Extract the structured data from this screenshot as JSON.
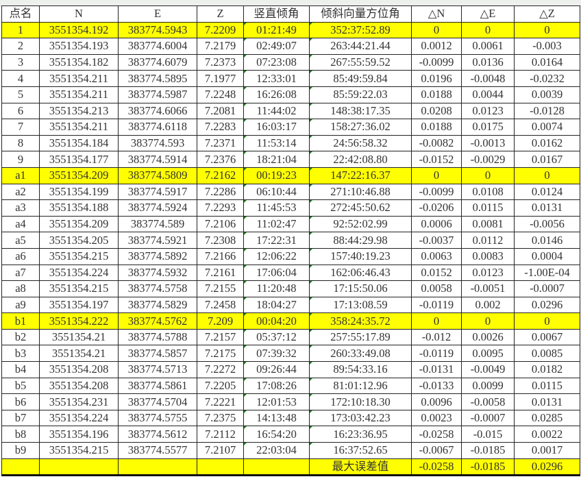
{
  "headers": [
    "点名",
    "N",
    "E",
    "Z",
    "竖直倾角",
    "倾斜向量方位角",
    "△N",
    "△E",
    "△Z"
  ],
  "rows": [
    {
      "name": "1",
      "N": "3551354.192",
      "E": "383774.5943",
      "Z": "7.2209",
      "v": "01:21:49",
      "az": "352:37:52.89",
      "dN": "0",
      "dE": "0",
      "dZ": "0",
      "highlight": true
    },
    {
      "name": "2",
      "N": "3551354.193",
      "E": "383774.6004",
      "Z": "7.2179",
      "v": "02:49:07",
      "az": "263:44:21.44",
      "dN": "0.0012",
      "dE": "0.0061",
      "dZ": "-0.003"
    },
    {
      "name": "3",
      "N": "3551354.182",
      "E": "383774.6079",
      "Z": "7.2373",
      "v": "07:23:08",
      "az": "267:55:59.52",
      "dN": "-0.0099",
      "dE": "0.0136",
      "dZ": "0.0164"
    },
    {
      "name": "4",
      "N": "3551354.211",
      "E": "383774.5895",
      "Z": "7.1977",
      "v": "12:33:01",
      "az": "85:49:59.84",
      "dN": "0.0196",
      "dE": "-0.0048",
      "dZ": "-0.0232"
    },
    {
      "name": "5",
      "N": "3551354.211",
      "E": "383774.5987",
      "Z": "7.2248",
      "v": "16:26:08",
      "az": "85:59:22.03",
      "dN": "0.0188",
      "dE": "0.0044",
      "dZ": "0.0039"
    },
    {
      "name": "6",
      "N": "3551354.213",
      "E": "383774.6066",
      "Z": "7.2081",
      "v": "11:44:02",
      "az": "148:38:17.35",
      "dN": "0.0208",
      "dE": "0.0123",
      "dZ": "-0.0128"
    },
    {
      "name": "7",
      "N": "3551354.211",
      "E": "383774.6118",
      "Z": "7.2283",
      "v": "16:03:17",
      "az": "158:27:36.02",
      "dN": "0.0188",
      "dE": "0.0175",
      "dZ": "0.0074"
    },
    {
      "name": "8",
      "N": "3551354.184",
      "E": "383774.593",
      "Z": "7.2371",
      "v": "11:53:14",
      "az": "24:56:58.32",
      "dN": "-0.0082",
      "dE": "-0.0013",
      "dZ": "0.0162"
    },
    {
      "name": "9",
      "N": "3551354.177",
      "E": "383774.5914",
      "Z": "7.2376",
      "v": "18:21:04",
      "az": "22:42:08.80",
      "dN": "-0.0152",
      "dE": "-0.0029",
      "dZ": "0.0167"
    },
    {
      "name": "a1",
      "N": "3551354.209",
      "E": "383774.5809",
      "Z": "7.2162",
      "v": "00:19:23",
      "az": "147:22:16.37",
      "dN": "0",
      "dE": "0",
      "dZ": "0",
      "highlight": true
    },
    {
      "name": "a2",
      "N": "3551354.199",
      "E": "383774.5917",
      "Z": "7.2286",
      "v": "06:10:44",
      "az": "271:10:46.88",
      "dN": "-0.0099",
      "dE": "0.0108",
      "dZ": "0.0124"
    },
    {
      "name": "a3",
      "N": "3551354.188",
      "E": "383774.5924",
      "Z": "7.2293",
      "v": "11:45:53",
      "az": "272:45:50.62",
      "dN": "-0.0206",
      "dE": "0.0115",
      "dZ": "0.0131"
    },
    {
      "name": "a4",
      "N": "3551354.209",
      "E": "383774.589",
      "Z": "7.2106",
      "v": "11:02:47",
      "az": "92:52:02.99",
      "dN": "0.0006",
      "dE": "0.0081",
      "dZ": "-0.0056"
    },
    {
      "name": "a5",
      "N": "3551354.205",
      "E": "383774.5921",
      "Z": "7.2308",
      "v": "17:22:31",
      "az": "88:44:29.98",
      "dN": "-0.0037",
      "dE": "0.0112",
      "dZ": "0.0146"
    },
    {
      "name": "a6",
      "N": "3551354.215",
      "E": "383774.5892",
      "Z": "7.2166",
      "v": "12:06:22",
      "az": "157:40:19.23",
      "dN": "0.0063",
      "dE": "0.0083",
      "dZ": "0.0004"
    },
    {
      "name": "a7",
      "N": "3551354.224",
      "E": "383774.5932",
      "Z": "7.2161",
      "v": "17:06:04",
      "az": "162:06:46.43",
      "dN": "0.0152",
      "dE": "0.0123",
      "dZ": "-1.00E-04"
    },
    {
      "name": "a8",
      "N": "3551354.215",
      "E": "383774.5758",
      "Z": "7.2155",
      "v": "11:20:48",
      "az": "17:15:50.06",
      "dN": "0.0058",
      "dE": "-0.0051",
      "dZ": "-0.0007"
    },
    {
      "name": "a9",
      "N": "3551354.197",
      "E": "383774.5829",
      "Z": "7.2458",
      "v": "18:04:27",
      "az": "17:13:08.59",
      "dN": "-0.0119",
      "dE": "0.002",
      "dZ": "0.0296"
    },
    {
      "name": "b1",
      "N": "3551354.222",
      "E": "383774.5762",
      "Z": "7.209",
      "v": "00:04:20",
      "az": "358:24:35.72",
      "dN": "0",
      "dE": "0",
      "dZ": "0",
      "highlight": true
    },
    {
      "name": "b2",
      "N": "3551354.21",
      "E": "383774.5788",
      "Z": "7.2157",
      "v": "05:37:12",
      "az": "257:55:17.89",
      "dN": "-0.012",
      "dE": "0.0026",
      "dZ": "0.0067"
    },
    {
      "name": "b3",
      "N": "3551354.21",
      "E": "383774.5857",
      "Z": "7.2175",
      "v": "07:39:32",
      "az": "260:33:49.08",
      "dN": "-0.0119",
      "dE": "0.0095",
      "dZ": "0.0085"
    },
    {
      "name": "b4",
      "N": "3551354.208",
      "E": "383774.5713",
      "Z": "7.2272",
      "v": "09:26:44",
      "az": "89:54:33.16",
      "dN": "-0.0131",
      "dE": "-0.0049",
      "dZ": "0.0182"
    },
    {
      "name": "b5",
      "N": "3551354.208",
      "E": "383774.5861",
      "Z": "7.2205",
      "v": "17:08:26",
      "az": "81:01:12.96",
      "dN": "-0.0133",
      "dE": "0.0099",
      "dZ": "0.0115"
    },
    {
      "name": "b6",
      "N": "3551354.231",
      "E": "383774.5704",
      "Z": "7.2221",
      "v": "12:01:53",
      "az": "172:10:18.30",
      "dN": "0.0096",
      "dE": "-0.0058",
      "dZ": "0.0131"
    },
    {
      "name": "b7",
      "N": "3551354.224",
      "E": "383774.5755",
      "Z": "7.2375",
      "v": "14:13:48",
      "az": "173:03:42.23",
      "dN": "0.0023",
      "dE": "-0.0007",
      "dZ": "0.0285"
    },
    {
      "name": "b8",
      "N": "3551354.196",
      "E": "383774.5612",
      "Z": "7.2112",
      "v": "16:54:20",
      "az": "16:23:36.95",
      "dN": "-0.0258",
      "dE": "-0.015",
      "dZ": "0.0022"
    },
    {
      "name": "b9",
      "N": "3551354.215",
      "E": "383774.5577",
      "Z": "7.2107",
      "v": "22:03:04",
      "az": "16:37:52.65",
      "dN": "-0.0067",
      "dE": "-0.0185",
      "dZ": "0.0017"
    }
  ],
  "total": {
    "label": "最大误差值",
    "dN": "-0.0258",
    "dE": "-0.0185",
    "dZ": "0.0296"
  },
  "colors": {
    "highlight": "#ffff00",
    "text": "#333333",
    "grid": "#222222"
  }
}
